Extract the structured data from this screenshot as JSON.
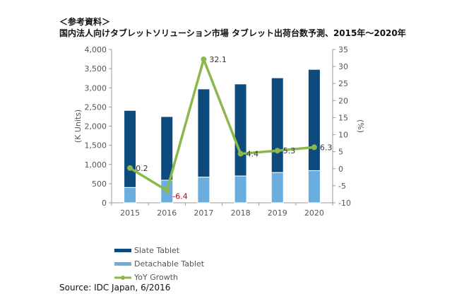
{
  "header": {
    "note": "＜参考資料＞",
    "title": "国内法人向けタブレットソリューション市場 タブレット出荷台数予測、2015年～2020年"
  },
  "source": "Source: IDC Japan, 6/2016",
  "colors": {
    "slate": "#0d4a7e",
    "detachable": "#6aaee0",
    "growth": "#8ab84a",
    "negative_label": "#cc0000"
  },
  "chart_data": {
    "type": "bar",
    "stacked": true,
    "categories": [
      "2015",
      "2016",
      "2017",
      "2018",
      "2019",
      "2020"
    ],
    "series": [
      {
        "name": "Slate Tablet",
        "values": [
          2010,
          1660,
          2300,
          2400,
          2470,
          2640
        ]
      },
      {
        "name": "Detachable Tablet",
        "values": [
          400,
          590,
          670,
          700,
          790,
          840
        ]
      },
      {
        "name": "YoY Growth",
        "type": "line",
        "axis": "right",
        "values": [
          0.2,
          -6.4,
          32.1,
          4.4,
          5.3,
          6.3
        ],
        "labels": [
          "0.2",
          "-6.4",
          "32.1",
          "4.4",
          "5.3",
          "6.3"
        ]
      }
    ],
    "ylabel": "(K Units)",
    "y2label": "(%)",
    "ylim": [
      0,
      4000
    ],
    "y2lim": [
      -10,
      35
    ],
    "yticks": [
      "0",
      "500",
      "1,000",
      "1,500",
      "2,000",
      "2,500",
      "3,000",
      "3,500",
      "4,000"
    ],
    "y2ticks": [
      "-10",
      "-5",
      "0",
      "5",
      "10",
      "15",
      "20",
      "25",
      "30",
      "35"
    ],
    "grid": false,
    "legend": "bottom-left"
  }
}
